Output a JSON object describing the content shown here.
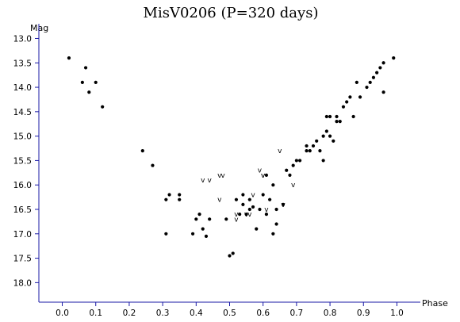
{
  "chart_data": {
    "type": "scatter",
    "title": "MisV0206 (P=320 days)",
    "xlabel": "Phase",
    "ylabel": "Mag",
    "xlim": [
      -0.07,
      1.07
    ],
    "ylim": [
      18.4,
      12.7
    ],
    "y_inverted": true,
    "grid": false,
    "x_ticks": [
      "0.0",
      "0.1",
      "0.2",
      "0.3",
      "0.4",
      "0.5",
      "0.6",
      "0.7",
      "0.8",
      "0.9",
      "1.0"
    ],
    "y_ticks": [
      "13.0",
      "13.5",
      "14.0",
      "14.5",
      "15.0",
      "15.5",
      "16.0",
      "16.5",
      "17.0",
      "17.5",
      "18.0"
    ],
    "colors": {
      "axis": "#1a1aa6",
      "points": "#000000"
    },
    "series": [
      {
        "marker": "dot",
        "points": [
          [
            0.02,
            13.4
          ],
          [
            0.06,
            13.9
          ],
          [
            0.07,
            13.6
          ],
          [
            0.08,
            14.1
          ],
          [
            0.1,
            13.9
          ],
          [
            0.12,
            14.4
          ],
          [
            0.24,
            15.3
          ],
          [
            0.27,
            15.6
          ],
          [
            0.31,
            16.3
          ],
          [
            0.31,
            17.0
          ],
          [
            0.32,
            16.2
          ],
          [
            0.35,
            16.2
          ],
          [
            0.35,
            16.3
          ],
          [
            0.39,
            17.0
          ],
          [
            0.4,
            16.7
          ],
          [
            0.41,
            16.6
          ],
          [
            0.42,
            16.9
          ],
          [
            0.43,
            17.05
          ],
          [
            0.44,
            16.7
          ],
          [
            0.49,
            16.7
          ],
          [
            0.5,
            17.45
          ],
          [
            0.51,
            17.4
          ],
          [
            0.52,
            16.3
          ],
          [
            0.53,
            16.6
          ],
          [
            0.54,
            16.2
          ],
          [
            0.54,
            16.4
          ],
          [
            0.55,
            16.6
          ],
          [
            0.56,
            16.3
          ],
          [
            0.56,
            16.5
          ],
          [
            0.57,
            16.45
          ],
          [
            0.58,
            16.9
          ],
          [
            0.59,
            16.5
          ],
          [
            0.6,
            16.2
          ],
          [
            0.61,
            15.8
          ],
          [
            0.61,
            16.6
          ],
          [
            0.62,
            16.3
          ],
          [
            0.63,
            16.0
          ],
          [
            0.63,
            17.0
          ],
          [
            0.64,
            16.5
          ],
          [
            0.64,
            16.8
          ],
          [
            0.66,
            16.4
          ],
          [
            0.67,
            15.7
          ],
          [
            0.68,
            15.8
          ],
          [
            0.69,
            15.6
          ],
          [
            0.7,
            15.5
          ],
          [
            0.71,
            15.5
          ],
          [
            0.73,
            15.3
          ],
          [
            0.73,
            15.2
          ],
          [
            0.74,
            15.3
          ],
          [
            0.75,
            15.2
          ],
          [
            0.76,
            15.1
          ],
          [
            0.77,
            15.3
          ],
          [
            0.78,
            15.0
          ],
          [
            0.78,
            15.5
          ],
          [
            0.79,
            14.9
          ],
          [
            0.79,
            14.6
          ],
          [
            0.8,
            15.0
          ],
          [
            0.8,
            14.6
          ],
          [
            0.81,
            15.1
          ],
          [
            0.82,
            14.7
          ],
          [
            0.82,
            14.6
          ],
          [
            0.83,
            14.7
          ],
          [
            0.84,
            14.4
          ],
          [
            0.85,
            14.3
          ],
          [
            0.86,
            14.2
          ],
          [
            0.87,
            14.6
          ],
          [
            0.88,
            13.9
          ],
          [
            0.89,
            14.2
          ],
          [
            0.91,
            14.0
          ],
          [
            0.92,
            13.9
          ],
          [
            0.93,
            13.8
          ],
          [
            0.94,
            13.7
          ],
          [
            0.95,
            13.6
          ],
          [
            0.96,
            14.1
          ],
          [
            0.96,
            13.5
          ],
          [
            0.99,
            13.4
          ]
        ]
      },
      {
        "marker": "v",
        "points": [
          [
            0.42,
            15.9
          ],
          [
            0.44,
            15.9
          ],
          [
            0.47,
            15.8
          ],
          [
            0.48,
            15.8
          ],
          [
            0.47,
            16.3
          ],
          [
            0.52,
            16.6
          ],
          [
            0.52,
            16.7
          ],
          [
            0.55,
            16.6
          ],
          [
            0.56,
            16.6
          ],
          [
            0.57,
            16.2
          ],
          [
            0.59,
            15.7
          ],
          [
            0.6,
            15.8
          ],
          [
            0.6,
            15.8
          ],
          [
            0.61,
            16.5
          ],
          [
            0.65,
            15.3
          ],
          [
            0.66,
            16.4
          ],
          [
            0.69,
            16.0
          ]
        ]
      }
    ]
  }
}
